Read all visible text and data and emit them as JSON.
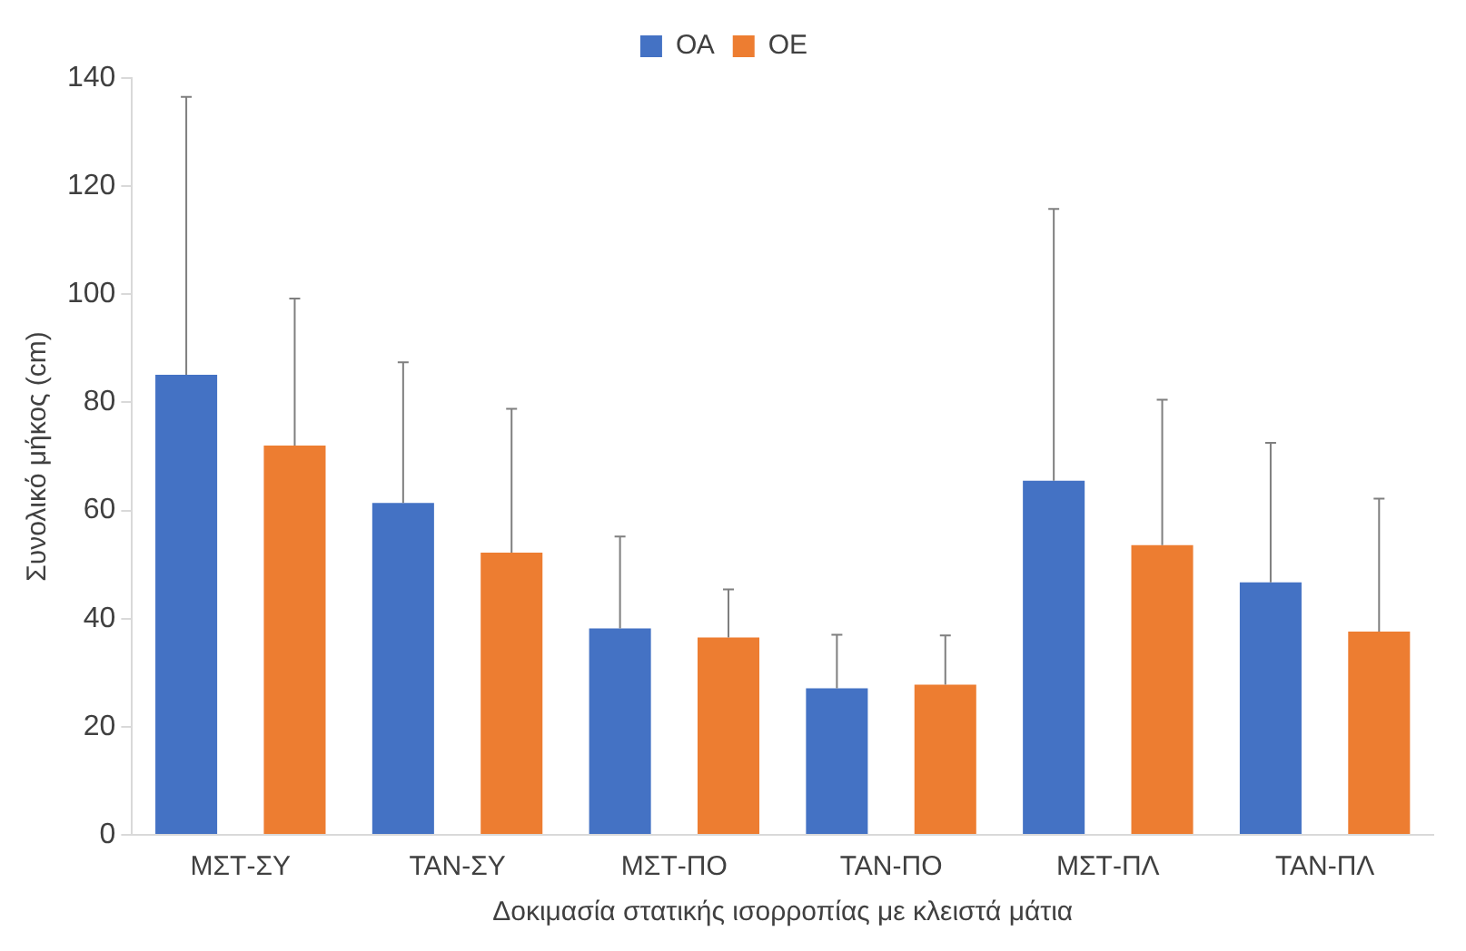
{
  "chart_data": {
    "type": "bar",
    "xlabel": "Δοκιμασία στατικής ισορροπίας με κλειστά μάτια",
    "ylabel": "Συνολικό μήκος (cm)",
    "categories": [
      "ΜΣΤ-ΣΥ",
      "ΤΑΝ-ΣΥ",
      "ΜΣΤ-ΠΟ",
      "ΤΑΝ-ΠΟ",
      "ΜΣΤ-ΠΛ",
      "ΤΑΝ-ΠΛ"
    ],
    "series": [
      {
        "name": "ΟΑ",
        "color": "#4472c4",
        "values": [
          85.1,
          61.4,
          38.2,
          27.1,
          65.5,
          46.7
        ],
        "errors": [
          [
            85.1,
            136.5
          ],
          [
            61.4,
            87.4
          ],
          [
            38.2,
            55.2
          ],
          [
            27.1,
            37.0
          ],
          [
            65.5,
            115.8
          ],
          [
            46.7,
            72.5
          ]
        ]
      },
      {
        "name": "ΟΕ",
        "color": "#ed7d31",
        "values": [
          72.0,
          52.2,
          36.5,
          27.8,
          53.6,
          37.6
        ],
        "errors": [
          [
            72.0,
            99.2
          ],
          [
            52.2,
            78.8
          ],
          [
            36.5,
            45.4
          ],
          [
            27.8,
            36.9
          ],
          [
            53.6,
            80.5
          ],
          [
            37.6,
            62.2
          ]
        ]
      }
    ],
    "ylim": [
      0,
      140
    ],
    "yticks": [
      0,
      20,
      40,
      60,
      80,
      100,
      120,
      140
    ],
    "grid": false,
    "legend": "top"
  }
}
